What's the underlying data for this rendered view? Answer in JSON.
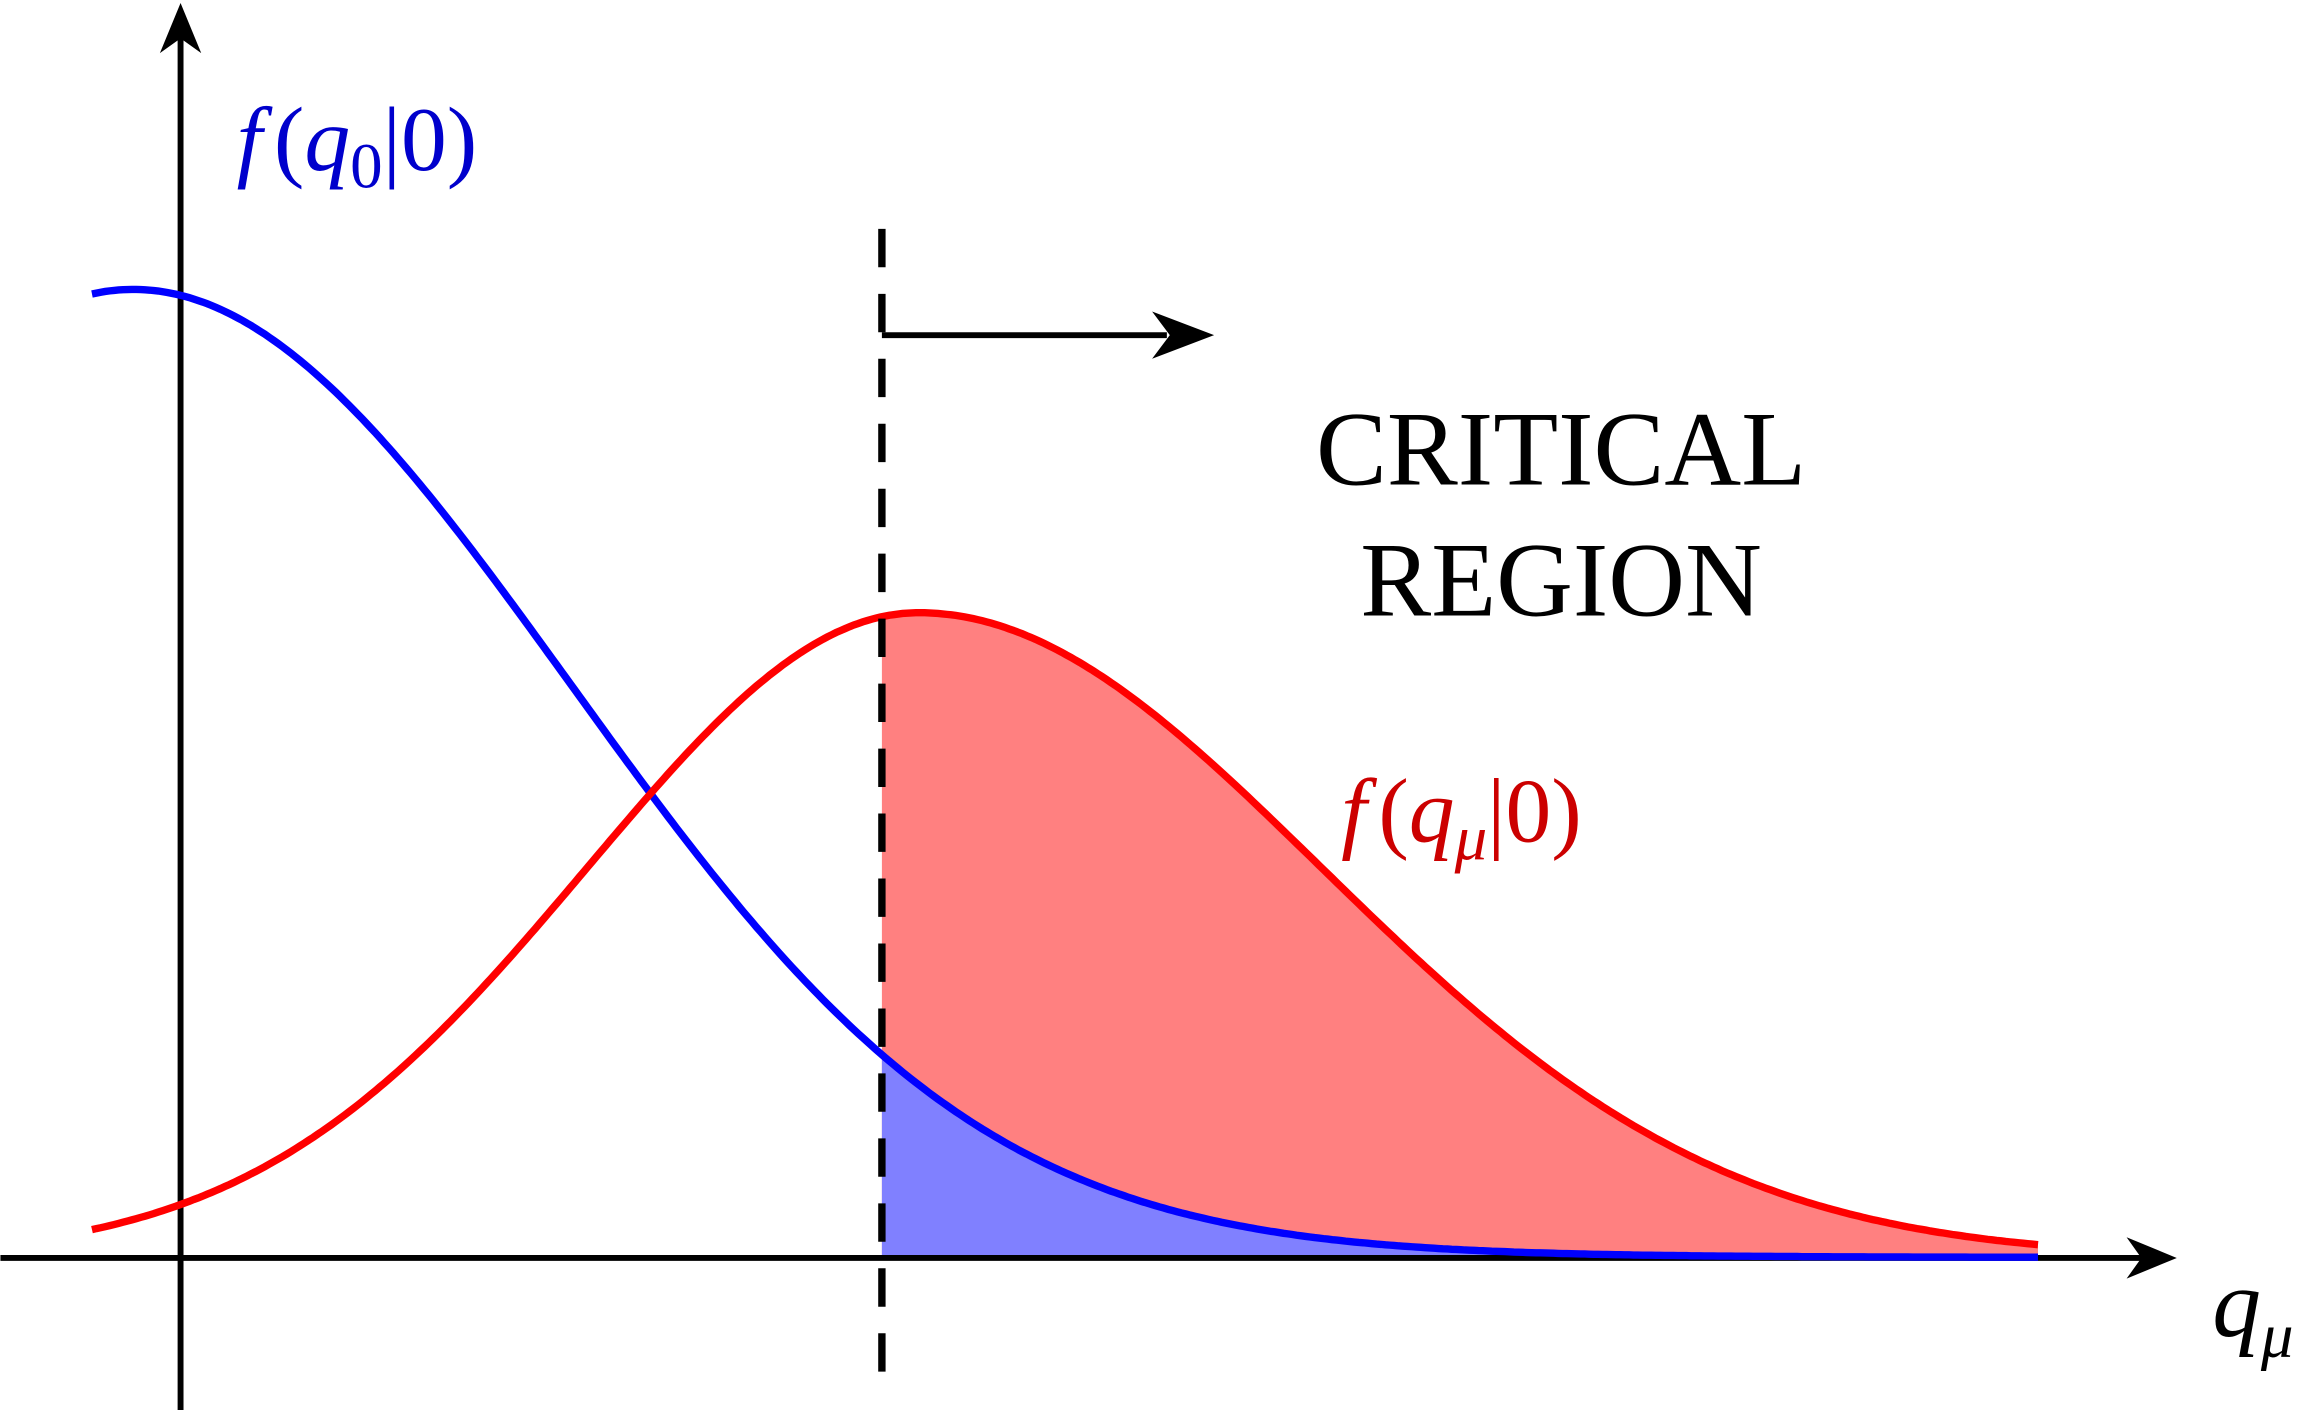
{
  "null_label": {
    "fn": "f",
    "open": "(",
    "var": "q",
    "sub": "0",
    "close": "|0)"
  },
  "alt_label": {
    "fn": "f",
    "open": "(",
    "var": "q",
    "sub": "μ",
    "close": "|0)"
  },
  "critical_region": {
    "lines": [
      "CRITICAL",
      "REGION"
    ]
  },
  "x_axis": {
    "var": "q",
    "sub": "μ"
  }
}
